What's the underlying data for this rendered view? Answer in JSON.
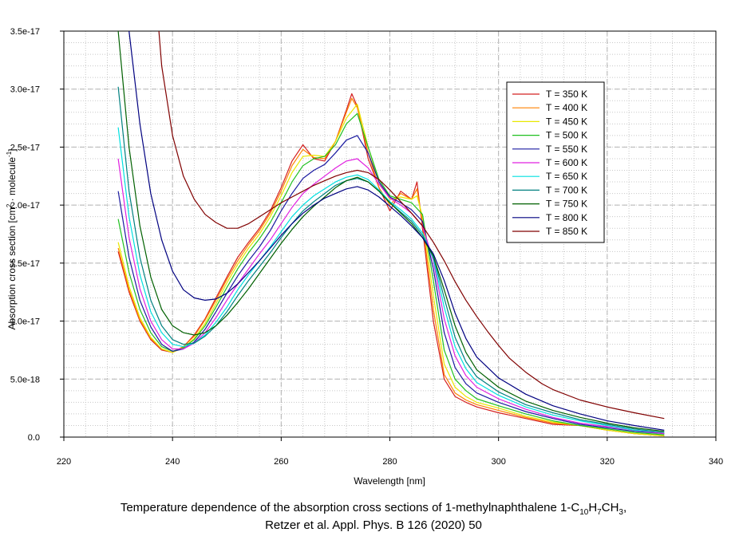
{
  "chart_data": {
    "type": "line",
    "xlabel": "Wavelength [nm]",
    "ylabel_main": "Absorption cross section [cm",
    "ylabel_sup1": "2",
    "ylabel_mid": " · molecule",
    "ylabel_sup2": "-1",
    "ylabel_end": "]",
    "xlim": [
      220,
      340
    ],
    "ylim": [
      0,
      3.5e-17
    ],
    "x_ticks": [
      220,
      240,
      260,
      280,
      300,
      320,
      340
    ],
    "x_tick_labels": [
      "220",
      "240",
      "260",
      "280",
      "300",
      "320",
      "340"
    ],
    "y_ticks": [
      0,
      5e-18,
      1e-17,
      1.5e-17,
      2e-17,
      2.5e-17,
      3e-17,
      3.5e-17
    ],
    "y_tick_labels": [
      "0.0",
      "5.0e-18",
      "1.0e-17",
      "1.5e-17",
      "2.0e-17",
      "2.5e-17",
      "3.0e-17",
      "3.5e-17"
    ],
    "grid": true,
    "legend_position": "top-right",
    "series": [
      {
        "name": "T = 350 K",
        "color": "#d42020",
        "x": [
          230,
          232,
          234,
          236,
          238,
          240,
          242,
          244,
          246,
          248,
          250,
          252,
          254,
          256,
          258,
          260,
          262,
          264,
          266,
          268,
          270,
          272,
          273,
          274,
          276,
          278,
          280,
          282,
          284,
          285,
          286,
          288,
          290,
          292,
          294,
          296,
          300,
          305,
          310,
          315,
          320,
          325,
          330.5
        ],
        "y": [
          1.6e-17,
          1.25e-17,
          1e-17,
          8.4e-18,
          7.5e-18,
          7.3e-18,
          7.8e-18,
          8.8e-18,
          1.02e-17,
          1.2e-17,
          1.38e-17,
          1.55e-17,
          1.68e-17,
          1.8e-17,
          1.95e-17,
          2.15e-17,
          2.38e-17,
          2.52e-17,
          2.4e-17,
          2.38e-17,
          2.55e-17,
          2.82e-17,
          2.96e-17,
          2.85e-17,
          2.4e-17,
          2.15e-17,
          1.95e-17,
          2.12e-17,
          2.05e-17,
          2.2e-17,
          1.8e-17,
          1e-17,
          5e-18,
          3.5e-18,
          3e-18,
          2.6e-18,
          2.1e-18,
          1.6e-18,
          1.1e-18,
          1e-18,
          6e-19,
          3e-19,
          1e-19
        ]
      },
      {
        "name": "T = 400 K",
        "color": "#ff8000",
        "x": [
          230,
          232,
          234,
          236,
          238,
          240,
          242,
          244,
          246,
          248,
          250,
          252,
          254,
          256,
          258,
          260,
          262,
          264,
          266,
          268,
          270,
          272,
          273,
          274,
          276,
          278,
          280,
          282,
          284,
          285,
          286,
          288,
          290,
          292,
          294,
          296,
          300,
          305,
          310,
          315,
          320,
          325,
          330.5
        ],
        "y": [
          1.63e-17,
          1.27e-17,
          1.01e-17,
          8.5e-18,
          7.6e-18,
          7.3e-18,
          7.8e-18,
          8.7e-18,
          1.01e-17,
          1.18e-17,
          1.36e-17,
          1.52e-17,
          1.66e-17,
          1.78e-17,
          1.93e-17,
          2.12e-17,
          2.34e-17,
          2.48e-17,
          2.41e-17,
          2.4e-17,
          2.55e-17,
          2.8e-17,
          2.92e-17,
          2.84e-17,
          2.45e-17,
          2.15e-17,
          2e-17,
          2.1e-17,
          2.05e-17,
          2.14e-17,
          1.85e-17,
          1.1e-17,
          5.4e-18,
          3.8e-18,
          3.2e-18,
          2.8e-18,
          2.3e-18,
          1.7e-18,
          1.2e-18,
          1e-18,
          6e-19,
          3e-19,
          1e-19
        ]
      },
      {
        "name": "T = 450 K",
        "color": "#e8e800",
        "x": [
          230,
          232,
          234,
          236,
          238,
          240,
          242,
          244,
          246,
          248,
          250,
          252,
          254,
          256,
          258,
          260,
          262,
          264,
          266,
          268,
          270,
          272,
          274,
          276,
          278,
          280,
          282,
          284,
          285,
          286,
          288,
          290,
          292,
          294,
          296,
          300,
          305,
          310,
          315,
          320,
          325,
          330.5
        ],
        "y": [
          1.68e-17,
          1.3e-17,
          1.03e-17,
          8.6e-18,
          7.6e-18,
          7.3e-18,
          7.7e-18,
          8.5e-18,
          9.8e-18,
          1.15e-17,
          1.33e-17,
          1.49e-17,
          1.63e-17,
          1.75e-17,
          1.9e-17,
          2.08e-17,
          2.28e-17,
          2.42e-17,
          2.43e-17,
          2.42e-17,
          2.55e-17,
          2.75e-17,
          2.87e-17,
          2.5e-17,
          2.2e-17,
          2.05e-17,
          2.07e-17,
          2.05e-17,
          2.08e-17,
          1.9e-17,
          1.22e-17,
          6.3e-18,
          4.3e-18,
          3.5e-18,
          3e-18,
          2.5e-18,
          1.8e-18,
          1.3e-18,
          1e-18,
          6e-19,
          3e-19,
          1e-19
        ]
      },
      {
        "name": "T = 500 K",
        "color": "#20c020",
        "x": [
          230,
          232,
          234,
          236,
          238,
          240,
          242,
          244,
          246,
          248,
          250,
          252,
          254,
          256,
          258,
          260,
          262,
          264,
          266,
          268,
          270,
          272,
          274,
          276,
          278,
          280,
          282,
          284,
          286,
          288,
          290,
          292,
          294,
          296,
          300,
          305,
          310,
          315,
          320,
          325,
          330.5
        ],
        "y": [
          1.88e-17,
          1.42e-17,
          1.1e-17,
          9e-18,
          7.8e-18,
          7.4e-18,
          7.7e-18,
          8.4e-18,
          9.6e-18,
          1.12e-17,
          1.29e-17,
          1.45e-17,
          1.59e-17,
          1.71e-17,
          1.85e-17,
          2.02e-17,
          2.2e-17,
          2.34e-17,
          2.4e-17,
          2.42e-17,
          2.52e-17,
          2.7e-17,
          2.79e-17,
          2.5e-17,
          2.22e-17,
          2.08e-17,
          2.05e-17,
          2.02e-17,
          1.92e-17,
          1.35e-17,
          7.5e-18,
          5e-18,
          4e-18,
          3.3e-18,
          2.7e-18,
          2e-18,
          1.4e-18,
          1e-18,
          7e-19,
          4e-19,
          2e-19
        ]
      },
      {
        "name": "T = 550 K",
        "color": "#1a1aa0",
        "x": [
          230,
          232,
          234,
          236,
          238,
          240,
          242,
          244,
          246,
          248,
          250,
          252,
          254,
          256,
          258,
          260,
          262,
          264,
          266,
          268,
          270,
          272,
          274,
          276,
          278,
          280,
          282,
          284,
          286,
          288,
          290,
          292,
          294,
          296,
          300,
          305,
          310,
          315,
          320,
          325,
          330.5
        ],
        "y": [
          2.12e-17,
          1.55e-17,
          1.18e-17,
          9.5e-18,
          8e-18,
          7.4e-18,
          7.6e-18,
          8.2e-18,
          9.3e-18,
          1.08e-17,
          1.24e-17,
          1.39e-17,
          1.52e-17,
          1.64e-17,
          1.78e-17,
          1.95e-17,
          2.1e-17,
          2.23e-17,
          2.3e-17,
          2.35e-17,
          2.45e-17,
          2.56e-17,
          2.6e-17,
          2.45e-17,
          2.2e-17,
          2.07e-17,
          2.02e-17,
          1.96e-17,
          1.86e-17,
          1.45e-17,
          9e-18,
          6e-18,
          4.6e-18,
          3.8e-18,
          3e-18,
          2.2e-18,
          1.6e-18,
          1.1e-18,
          8e-19,
          5e-19,
          3e-19
        ]
      },
      {
        "name": "T = 600 K",
        "color": "#e020e0",
        "x": [
          230,
          232,
          234,
          236,
          238,
          240,
          242,
          244,
          246,
          248,
          250,
          252,
          254,
          256,
          258,
          260,
          262,
          264,
          266,
          268,
          270,
          272,
          274,
          276,
          278,
          280,
          282,
          284,
          286,
          288,
          290,
          292,
          294,
          296,
          300,
          305,
          310,
          315,
          320,
          325,
          330.5
        ],
        "y": [
          2.4e-17,
          1.72e-17,
          1.28e-17,
          1e-17,
          8.4e-18,
          7.6e-18,
          7.6e-18,
          8.1e-18,
          9e-18,
          1.03e-17,
          1.18e-17,
          1.32e-17,
          1.45e-17,
          1.58e-17,
          1.7e-17,
          1.84e-17,
          1.98e-17,
          2.1e-17,
          2.18e-17,
          2.25e-17,
          2.32e-17,
          2.38e-17,
          2.4e-17,
          2.32e-17,
          2.18e-17,
          2.06e-17,
          2e-17,
          1.93e-17,
          1.82e-17,
          1.52e-17,
          1.02e-17,
          7e-18,
          5.3e-18,
          4.3e-18,
          3.3e-18,
          2.4e-18,
          1.7e-18,
          1.2e-18,
          9e-19,
          6e-19,
          3e-19
        ]
      },
      {
        "name": "T = 650 K",
        "color": "#00e0e0",
        "x": [
          230,
          232,
          234,
          236,
          238,
          240,
          242,
          244,
          246,
          248,
          250,
          252,
          254,
          256,
          258,
          260,
          262,
          264,
          266,
          268,
          270,
          272,
          274,
          276,
          278,
          280,
          282,
          284,
          286,
          288,
          290,
          292,
          294,
          296,
          300,
          305,
          310,
          315,
          320,
          325,
          330.5
        ],
        "y": [
          2.67e-17,
          1.9e-17,
          1.4e-17,
          1.08e-17,
          9e-18,
          8e-18,
          7.8e-18,
          8.1e-18,
          8.8e-18,
          9.9e-18,
          1.12e-17,
          1.27e-17,
          1.4e-17,
          1.52e-17,
          1.64e-17,
          1.77e-17,
          1.9e-17,
          2e-17,
          2.08e-17,
          2.14e-17,
          2.2e-17,
          2.24e-17,
          2.26e-17,
          2.22e-17,
          2.13e-17,
          2.03e-17,
          1.96e-17,
          1.88e-17,
          1.76e-17,
          1.54e-17,
          1.12e-17,
          7.8e-18,
          5.9e-18,
          4.7e-18,
          3.6e-18,
          2.6e-18,
          1.9e-18,
          1.4e-18,
          1e-18,
          6e-19,
          4e-19
        ]
      },
      {
        "name": "T = 700 K",
        "color": "#008080",
        "x": [
          230,
          232,
          234,
          236,
          238,
          240,
          242,
          244,
          246,
          248,
          250,
          252,
          254,
          256,
          258,
          260,
          262,
          264,
          266,
          268,
          270,
          272,
          274,
          276,
          278,
          280,
          282,
          284,
          286,
          288,
          290,
          292,
          294,
          296,
          300,
          305,
          310,
          315,
          320,
          325,
          330.5
        ],
        "y": [
          3.02e-17,
          2.12e-17,
          1.55e-17,
          1.18e-17,
          9.6e-18,
          8.4e-18,
          8e-18,
          8.1e-18,
          8.7e-18,
          9.6e-18,
          1.08e-17,
          1.22e-17,
          1.35e-17,
          1.47e-17,
          1.59e-17,
          1.72e-17,
          1.84e-17,
          1.95e-17,
          2.03e-17,
          2.1e-17,
          2.17e-17,
          2.21e-17,
          2.23e-17,
          2.2e-17,
          2.12e-17,
          2.02e-17,
          1.94e-17,
          1.86e-17,
          1.74e-17,
          1.56e-17,
          1.2e-17,
          8.6e-18,
          6.5e-18,
          5.2e-18,
          3.9e-18,
          2.8e-18,
          2.1e-18,
          1.5e-18,
          1.1e-18,
          7e-19,
          4e-19
        ]
      },
      {
        "name": "T = 750 K",
        "color": "#006000",
        "x": [
          230,
          232,
          234,
          236,
          238,
          240,
          242,
          244,
          246,
          248,
          250,
          252,
          254,
          256,
          258,
          260,
          262,
          264,
          266,
          268,
          270,
          272,
          274,
          276,
          278,
          280,
          282,
          284,
          286,
          288,
          290,
          292,
          294,
          296,
          300,
          305,
          310,
          315,
          320,
          325,
          330.5
        ],
        "y": [
          3.5e-17,
          2.5e-17,
          1.82e-17,
          1.38e-17,
          1.1e-17,
          9.6e-18,
          9e-18,
          8.8e-18,
          9e-18,
          9.6e-18,
          1.05e-17,
          1.16e-17,
          1.28e-17,
          1.41e-17,
          1.54e-17,
          1.67e-17,
          1.79e-17,
          1.9e-17,
          1.99e-17,
          2.07e-17,
          2.15e-17,
          2.21e-17,
          2.24e-17,
          2.2e-17,
          2.12e-17,
          2.02e-17,
          1.93e-17,
          1.84e-17,
          1.72e-17,
          1.56e-17,
          1.27e-17,
          9.6e-18,
          7.3e-18,
          5.8e-18,
          4.3e-18,
          3.1e-18,
          2.3e-18,
          1.7e-18,
          1.2e-18,
          8e-19,
          5e-19
        ]
      },
      {
        "name": "T = 800 K",
        "color": "#000080",
        "x": [
          232,
          234,
          236,
          238,
          240,
          242,
          244,
          246,
          248,
          250,
          252,
          254,
          256,
          258,
          260,
          262,
          264,
          266,
          268,
          270,
          272,
          274,
          276,
          278,
          280,
          282,
          284,
          286,
          288,
          290,
          292,
          294,
          296,
          300,
          305,
          310,
          315,
          320,
          325,
          330.5
        ],
        "y": [
          3.5e-17,
          2.7e-17,
          2.1e-17,
          1.7e-17,
          1.43e-17,
          1.27e-17,
          1.2e-17,
          1.18e-17,
          1.19e-17,
          1.24e-17,
          1.32e-17,
          1.42e-17,
          1.52e-17,
          1.63e-17,
          1.74e-17,
          1.84e-17,
          1.93e-17,
          2e-17,
          2.06e-17,
          2.1e-17,
          2.14e-17,
          2.16e-17,
          2.13e-17,
          2.07e-17,
          1.99e-17,
          1.91e-17,
          1.82e-17,
          1.72e-17,
          1.58e-17,
          1.35e-17,
          1.07e-17,
          8.5e-18,
          6.9e-18,
          5.1e-18,
          3.7e-18,
          2.7e-18,
          2e-18,
          1.4e-18,
          1e-18,
          6e-19
        ]
      },
      {
        "name": "T = 850 K",
        "color": "#800000",
        "x": [
          237.5,
          238,
          240,
          242,
          244,
          246,
          248,
          250,
          252,
          254,
          256,
          258,
          260,
          262,
          264,
          266,
          268,
          270,
          272,
          274,
          276,
          278,
          280,
          282,
          284,
          286,
          288,
          290,
          292,
          294,
          296,
          298,
          300,
          302,
          305,
          308,
          310,
          315,
          320,
          325,
          330.5
        ],
        "y": [
          3.5e-17,
          3.2e-17,
          2.6e-17,
          2.25e-17,
          2.05e-17,
          1.92e-17,
          1.85e-17,
          1.8e-17,
          1.8e-17,
          1.84e-17,
          1.9e-17,
          1.96e-17,
          2.02e-17,
          2.07e-17,
          2.12e-17,
          2.17e-17,
          2.21e-17,
          2.25e-17,
          2.28e-17,
          2.3e-17,
          2.28e-17,
          2.22e-17,
          2.13e-17,
          2.03e-17,
          1.93e-17,
          1.82e-17,
          1.68e-17,
          1.52e-17,
          1.34e-17,
          1.18e-17,
          1.04e-17,
          9.1e-18,
          7.9e-18,
          6.8e-18,
          5.6e-18,
          4.6e-18,
          4.1e-18,
          3.2e-18,
          2.6e-18,
          2.1e-18,
          1.6e-18
        ]
      }
    ]
  },
  "caption": {
    "line1_pre": "Temperature dependence of the absorption cross sections of 1-methylnaphthalene 1-C",
    "sub1": "10",
    "h": "H",
    "sub2": "7",
    "ch": "CH",
    "sub3": "3",
    "line1_end": ",",
    "line2": "Retzer et al. Appl. Phys. B 126 (2020) 50"
  }
}
